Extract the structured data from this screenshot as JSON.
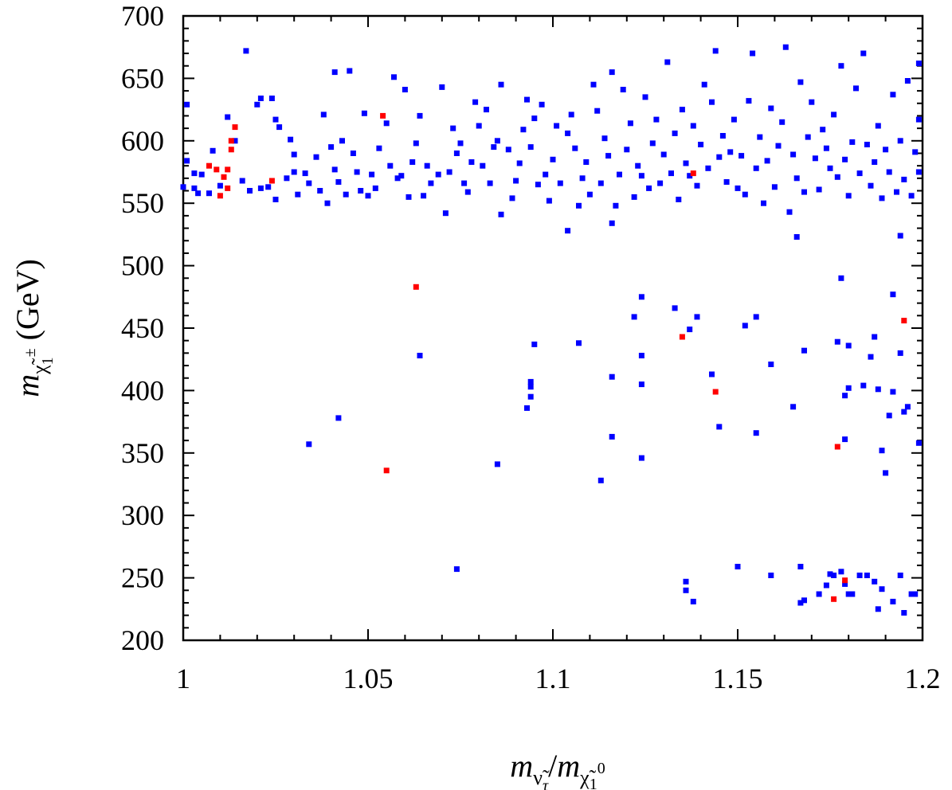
{
  "chart_data": {
    "type": "scatter",
    "title": "",
    "xlabel": "m_ν̃τ / m_χ̃⁰₁",
    "ylabel": "m_χ̃±₁ (GeV)",
    "xlim": [
      1.0,
      1.2
    ],
    "ylim": [
      200,
      700
    ],
    "xticks": [
      1.0,
      1.05,
      1.1,
      1.15,
      1.2
    ],
    "xtick_labels": [
      "1",
      "1.05",
      "1.1",
      "1.15",
      "1.2"
    ],
    "yticks": [
      200,
      250,
      300,
      350,
      400,
      450,
      500,
      550,
      600,
      650,
      700
    ],
    "ytick_labels": [
      "200",
      "250",
      "300",
      "350",
      "400",
      "450",
      "500",
      "550",
      "600",
      "650",
      "700"
    ],
    "colors": {
      "blue": "#0000ff",
      "red": "#ff0000",
      "axis": "#000000"
    },
    "series": [
      {
        "name": "blue",
        "color": "#0000ff",
        "points": [
          [
            1.0,
            563
          ],
          [
            1.001,
            584
          ],
          [
            1.001,
            629
          ],
          [
            1.003,
            574
          ],
          [
            1.003,
            562
          ],
          [
            1.004,
            558
          ],
          [
            1.005,
            573
          ],
          [
            1.007,
            558
          ],
          [
            1.008,
            592
          ],
          [
            1.01,
            564
          ],
          [
            1.012,
            619
          ],
          [
            1.014,
            600
          ],
          [
            1.016,
            568
          ],
          [
            1.017,
            672
          ],
          [
            1.018,
            560
          ],
          [
            1.02,
            629
          ],
          [
            1.021,
            634
          ],
          [
            1.021,
            562
          ],
          [
            1.023,
            563
          ],
          [
            1.024,
            634
          ],
          [
            1.025,
            553
          ],
          [
            1.025,
            617
          ],
          [
            1.026,
            611
          ],
          [
            1.028,
            570
          ],
          [
            1.029,
            601
          ],
          [
            1.03,
            575
          ],
          [
            1.03,
            589
          ],
          [
            1.031,
            557
          ],
          [
            1.033,
            574
          ],
          [
            1.034,
            566
          ],
          [
            1.036,
            587
          ],
          [
            1.037,
            560
          ],
          [
            1.038,
            621
          ],
          [
            1.039,
            550
          ],
          [
            1.04,
            595
          ],
          [
            1.041,
            577
          ],
          [
            1.041,
            655
          ],
          [
            1.042,
            567
          ],
          [
            1.043,
            600
          ],
          [
            1.044,
            557
          ],
          [
            1.045,
            656
          ],
          [
            1.046,
            590
          ],
          [
            1.047,
            575
          ],
          [
            1.048,
            560
          ],
          [
            1.049,
            622
          ],
          [
            1.05,
            556
          ],
          [
            1.051,
            573
          ],
          [
            1.052,
            562
          ],
          [
            1.053,
            594
          ],
          [
            1.055,
            614
          ],
          [
            1.056,
            580
          ],
          [
            1.057,
            651
          ],
          [
            1.058,
            570
          ],
          [
            1.059,
            572
          ],
          [
            1.06,
            641
          ],
          [
            1.061,
            555
          ],
          [
            1.062,
            583
          ],
          [
            1.063,
            598
          ],
          [
            1.064,
            620
          ],
          [
            1.065,
            556
          ],
          [
            1.066,
            580
          ],
          [
            1.067,
            566
          ],
          [
            1.069,
            573
          ],
          [
            1.07,
            643
          ],
          [
            1.071,
            542
          ],
          [
            1.072,
            575
          ],
          [
            1.073,
            610
          ],
          [
            1.074,
            590
          ],
          [
            1.075,
            598
          ],
          [
            1.076,
            566
          ],
          [
            1.077,
            559
          ],
          [
            1.078,
            583
          ],
          [
            1.079,
            631
          ],
          [
            1.08,
            612
          ],
          [
            1.081,
            580
          ],
          [
            1.082,
            625
          ],
          [
            1.083,
            566
          ],
          [
            1.084,
            595
          ],
          [
            1.085,
            600
          ],
          [
            1.086,
            645
          ],
          [
            1.086,
            541
          ],
          [
            1.088,
            593
          ],
          [
            1.089,
            554
          ],
          [
            1.09,
            568
          ],
          [
            1.091,
            582
          ],
          [
            1.092,
            609
          ],
          [
            1.093,
            633
          ],
          [
            1.094,
            595
          ],
          [
            1.095,
            618
          ],
          [
            1.096,
            565
          ],
          [
            1.097,
            629
          ],
          [
            1.098,
            573
          ],
          [
            1.099,
            552
          ],
          [
            1.1,
            585
          ],
          [
            1.101,
            612
          ],
          [
            1.102,
            566
          ],
          [
            1.104,
            606
          ],
          [
            1.105,
            621
          ],
          [
            1.106,
            594
          ],
          [
            1.107,
            548
          ],
          [
            1.108,
            570
          ],
          [
            1.109,
            583
          ],
          [
            1.11,
            557
          ],
          [
            1.111,
            645
          ],
          [
            1.112,
            624
          ],
          [
            1.113,
            566
          ],
          [
            1.114,
            602
          ],
          [
            1.115,
            588
          ],
          [
            1.116,
            655
          ],
          [
            1.117,
            548
          ],
          [
            1.118,
            573
          ],
          [
            1.119,
            641
          ],
          [
            1.12,
            593
          ],
          [
            1.121,
            614
          ],
          [
            1.122,
            555
          ],
          [
            1.123,
            580
          ],
          [
            1.124,
            572
          ],
          [
            1.125,
            635
          ],
          [
            1.126,
            562
          ],
          [
            1.127,
            598
          ],
          [
            1.128,
            617
          ],
          [
            1.129,
            566
          ],
          [
            1.13,
            589
          ],
          [
            1.131,
            663
          ],
          [
            1.132,
            574
          ],
          [
            1.133,
            606
          ],
          [
            1.134,
            553
          ],
          [
            1.135,
            625
          ],
          [
            1.136,
            582
          ],
          [
            1.137,
            572
          ],
          [
            1.138,
            612
          ],
          [
            1.139,
            564
          ],
          [
            1.14,
            597
          ],
          [
            1.141,
            645
          ],
          [
            1.142,
            578
          ],
          [
            1.143,
            631
          ],
          [
            1.144,
            672
          ],
          [
            1.145,
            587
          ],
          [
            1.146,
            604
          ],
          [
            1.147,
            567
          ],
          [
            1.148,
            591
          ],
          [
            1.149,
            617
          ],
          [
            1.15,
            562
          ],
          [
            1.151,
            588
          ],
          [
            1.152,
            557
          ],
          [
            1.153,
            632
          ],
          [
            1.154,
            670
          ],
          [
            1.155,
            578
          ],
          [
            1.156,
            603
          ],
          [
            1.157,
            550
          ],
          [
            1.158,
            584
          ],
          [
            1.159,
            626
          ],
          [
            1.16,
            563
          ],
          [
            1.161,
            596
          ],
          [
            1.162,
            615
          ],
          [
            1.163,
            675
          ],
          [
            1.164,
            543
          ],
          [
            1.165,
            589
          ],
          [
            1.166,
            570
          ],
          [
            1.167,
            647
          ],
          [
            1.168,
            559
          ],
          [
            1.169,
            603
          ],
          [
            1.17,
            631
          ],
          [
            1.171,
            586
          ],
          [
            1.172,
            561
          ],
          [
            1.173,
            609
          ],
          [
            1.174,
            594
          ],
          [
            1.175,
            578
          ],
          [
            1.176,
            621
          ],
          [
            1.177,
            571
          ],
          [
            1.178,
            660
          ],
          [
            1.179,
            585
          ],
          [
            1.18,
            556
          ],
          [
            1.181,
            599
          ],
          [
            1.182,
            642
          ],
          [
            1.183,
            574
          ],
          [
            1.184,
            670
          ],
          [
            1.185,
            597
          ],
          [
            1.186,
            564
          ],
          [
            1.187,
            583
          ],
          [
            1.188,
            612
          ],
          [
            1.189,
            554
          ],
          [
            1.19,
            593
          ],
          [
            1.191,
            575
          ],
          [
            1.192,
            637
          ],
          [
            1.193,
            559
          ],
          [
            1.194,
            600
          ],
          [
            1.195,
            569
          ],
          [
            1.196,
            648
          ],
          [
            1.197,
            556
          ],
          [
            1.198,
            591
          ],
          [
            1.199,
            575
          ],
          [
            1.199,
            662
          ],
          [
            1.199,
            617
          ],
          [
            1.104,
            528
          ],
          [
            1.116,
            534
          ],
          [
            1.166,
            523
          ],
          [
            1.194,
            524
          ],
          [
            1.124,
            475
          ],
          [
            1.133,
            466
          ],
          [
            1.139,
            459
          ],
          [
            1.122,
            459
          ],
          [
            1.137,
            449
          ],
          [
            1.152,
            452
          ],
          [
            1.155,
            459
          ],
          [
            1.178,
            490
          ],
          [
            1.192,
            477
          ],
          [
            1.177,
            439
          ],
          [
            1.18,
            436
          ],
          [
            1.187,
            443
          ],
          [
            1.194,
            430
          ],
          [
            1.186,
            427
          ],
          [
            1.095,
            437
          ],
          [
            1.107,
            438
          ],
          [
            1.124,
            428
          ],
          [
            1.064,
            428
          ],
          [
            1.159,
            421
          ],
          [
            1.168,
            432
          ],
          [
            1.143,
            413
          ],
          [
            1.116,
            411
          ],
          [
            1.124,
            405
          ],
          [
            1.094,
            407
          ],
          [
            1.094,
            403
          ],
          [
            1.094,
            395
          ],
          [
            1.093,
            386
          ],
          [
            1.18,
            402
          ],
          [
            1.184,
            404
          ],
          [
            1.192,
            399
          ],
          [
            1.179,
            396
          ],
          [
            1.188,
            401
          ],
          [
            1.196,
            387
          ],
          [
            1.195,
            383
          ],
          [
            1.042,
            378
          ],
          [
            1.034,
            357
          ],
          [
            1.116,
            363
          ],
          [
            1.145,
            371
          ],
          [
            1.155,
            366
          ],
          [
            1.165,
            387
          ],
          [
            1.179,
            361
          ],
          [
            1.189,
            352
          ],
          [
            1.191,
            380
          ],
          [
            1.199,
            358
          ],
          [
            1.124,
            346
          ],
          [
            1.085,
            341
          ],
          [
            1.113,
            328
          ],
          [
            1.19,
            334
          ],
          [
            1.074,
            257
          ],
          [
            1.136,
            247
          ],
          [
            1.136,
            240
          ],
          [
            1.138,
            231
          ],
          [
            1.15,
            259
          ],
          [
            1.159,
            252
          ],
          [
            1.167,
            259
          ],
          [
            1.167,
            230
          ],
          [
            1.168,
            232
          ],
          [
            1.172,
            237
          ],
          [
            1.174,
            244
          ],
          [
            1.175,
            253
          ],
          [
            1.176,
            252
          ],
          [
            1.178,
            255
          ],
          [
            1.179,
            245
          ],
          [
            1.18,
            237
          ],
          [
            1.181,
            237
          ],
          [
            1.183,
            252
          ],
          [
            1.185,
            252
          ],
          [
            1.187,
            247
          ],
          [
            1.189,
            241
          ],
          [
            1.188,
            225
          ],
          [
            1.192,
            231
          ],
          [
            1.194,
            252
          ],
          [
            1.195,
            222
          ],
          [
            1.197,
            237
          ],
          [
            1.198,
            237
          ]
        ]
      },
      {
        "name": "red",
        "color": "#ff0000",
        "points": [
          [
            1.007,
            580
          ],
          [
            1.009,
            577
          ],
          [
            1.01,
            556
          ],
          [
            1.011,
            571
          ],
          [
            1.012,
            577
          ],
          [
            1.012,
            562
          ],
          [
            1.013,
            600
          ],
          [
            1.013,
            593
          ],
          [
            1.014,
            611
          ],
          [
            1.024,
            568
          ],
          [
            1.054,
            620
          ],
          [
            1.063,
            483
          ],
          [
            1.055,
            336
          ],
          [
            1.135,
            443
          ],
          [
            1.138,
            574
          ],
          [
            1.144,
            399
          ],
          [
            1.177,
            355
          ],
          [
            1.176,
            233
          ],
          [
            1.179,
            248
          ],
          [
            1.195,
            456
          ]
        ]
      }
    ]
  }
}
